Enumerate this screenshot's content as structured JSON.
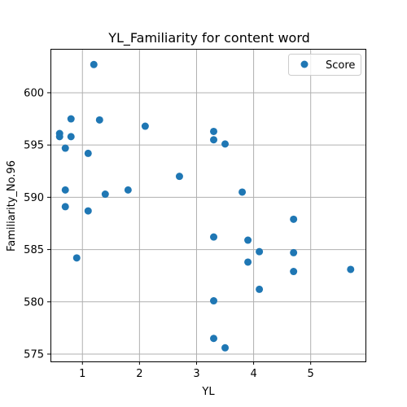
{
  "chart_data": {
    "type": "scatter",
    "title": "YL_Familiarity for content word",
    "xlabel": "YL",
    "ylabel": "Familiarity_No.96",
    "xlim": [
      0.44,
      5.96
    ],
    "ylim": [
      574.3,
      604.2
    ],
    "xticks": [
      1,
      2,
      3,
      4,
      5
    ],
    "xtick_labels": [
      "1",
      "2",
      "3",
      "4",
      "5"
    ],
    "yticks": [
      575,
      580,
      585,
      590,
      595,
      600
    ],
    "ytick_labels": [
      "575",
      "580",
      "585",
      "590",
      "595",
      "600"
    ],
    "grid": true,
    "legend": {
      "position": "top-right",
      "entries": [
        "Score"
      ]
    },
    "colors": {
      "marker": "#1f77b4",
      "grid": "#b0b0b0",
      "axes": "#000000"
    },
    "series": [
      {
        "name": "Score",
        "x": [
          0.6,
          0.6,
          0.7,
          0.7,
          0.7,
          0.8,
          0.8,
          0.9,
          1.1,
          1.1,
          1.2,
          1.3,
          1.4,
          1.8,
          2.1,
          2.7,
          3.3,
          3.3,
          3.3,
          3.3,
          3.3,
          3.5,
          3.5,
          3.8,
          3.9,
          3.9,
          4.1,
          4.1,
          4.7,
          4.7,
          4.7,
          5.7
        ],
        "y": [
          596.1,
          595.8,
          594.7,
          590.7,
          589.1,
          597.5,
          595.8,
          584.2,
          594.2,
          588.7,
          602.7,
          597.4,
          590.3,
          590.7,
          596.8,
          592.0,
          596.3,
          595.5,
          586.2,
          580.1,
          576.5,
          595.1,
          575.6,
          590.5,
          585.9,
          583.8,
          584.8,
          581.2,
          587.9,
          584.7,
          582.9,
          583.1
        ]
      }
    ]
  }
}
